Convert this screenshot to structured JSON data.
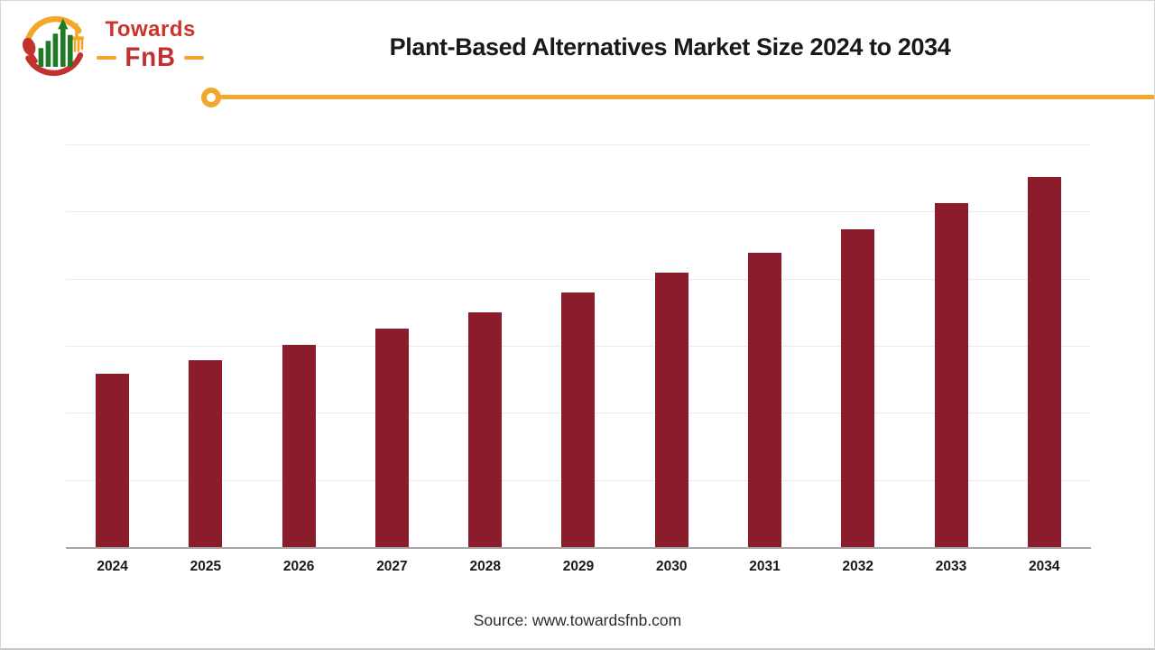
{
  "logo": {
    "name": "Towards",
    "sub_name": "FnB"
  },
  "header": {
    "title": "Plant-Based Alternatives Market Size 2024 to 2034"
  },
  "chart_data": {
    "type": "bar",
    "title": "Plant-Based Alternatives Market Size 2024 to 2034",
    "categories": [
      "2024",
      "2025",
      "2026",
      "2027",
      "2028",
      "2029",
      "2030",
      "2031",
      "2032",
      "2033",
      "2034"
    ],
    "values": [
      2.58,
      2.79,
      3.01,
      3.26,
      3.5,
      3.79,
      4.09,
      4.39,
      4.74,
      5.13,
      5.52
    ],
    "value_note": "y-axis has no visible labels; values estimated in gridline units (1 = one gridline interval above the baseline)",
    "xlabel": "",
    "ylabel": "",
    "ylim": [
      0,
      6
    ],
    "grid": true,
    "gridline_count": 6,
    "legend": false,
    "bar_color": "#8b1c2c",
    "axis_color": "#a6a6a6",
    "gridline_color": "#edebe7"
  },
  "footer": {
    "source": "Source: www.towardsfnb.com"
  },
  "brand_colors": {
    "red": "#cb342a",
    "dark_red": "#c22f31",
    "amber": "#f4a72b",
    "green": "#1e7a24",
    "maroon": "#8b1c2c"
  }
}
